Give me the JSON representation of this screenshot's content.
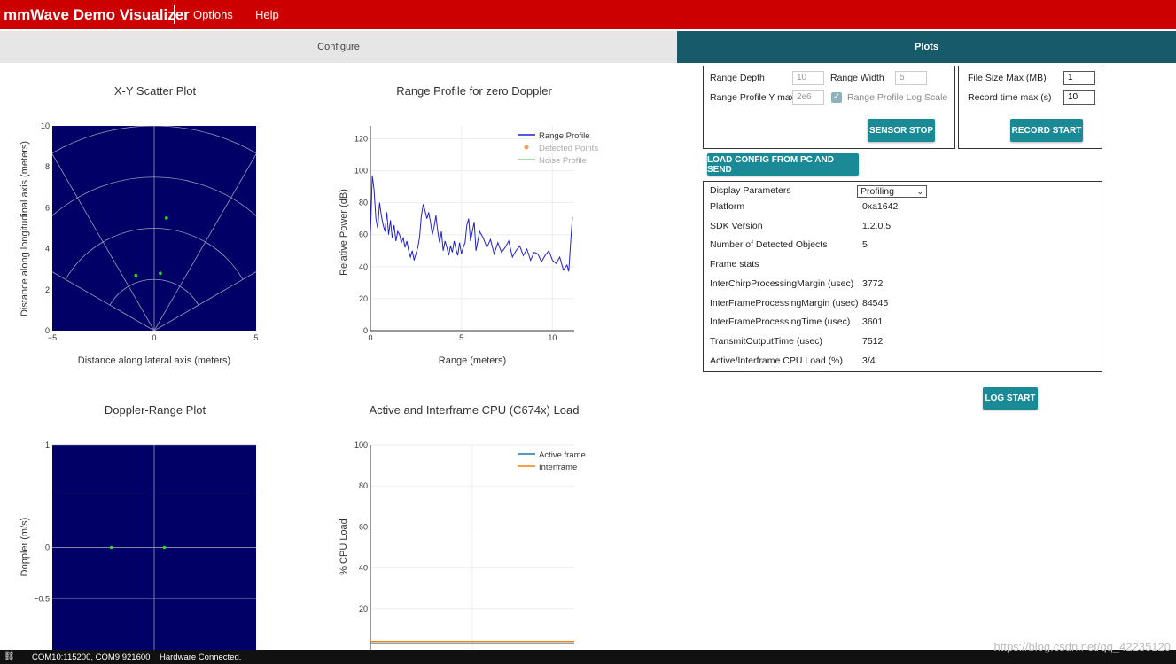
{
  "app": {
    "title": "mmWave Demo Visualizer",
    "menu": [
      "Options",
      "Help"
    ]
  },
  "tabs": {
    "configure": "Configure",
    "plots": "Plots"
  },
  "controls": {
    "range_depth_label": "Range Depth",
    "range_depth_value": "10",
    "range_width_label": "Range Width",
    "range_width_value": "5",
    "range_profile_ymax_label": "Range Profile Y max",
    "range_profile_ymax_value": "2e6",
    "log_scale_label": "Range Profile Log Scale",
    "log_scale_checked": true,
    "sensor_stop": "SENSOR STOP",
    "file_size_label": "File Size Max (MB)",
    "file_size_value": "1",
    "record_time_label": "Record time max (s)",
    "record_time_value": "10",
    "record_start": "RECORD START",
    "load_config": "LOAD CONFIG FROM PC AND SEND",
    "log_start": "LOG START"
  },
  "display": {
    "label": "Display Parameters",
    "selected": "Profiling",
    "rows": [
      {
        "k": "Platform",
        "v": "0xa1642"
      },
      {
        "k": "SDK Version",
        "v": "1.2.0.5"
      },
      {
        "k": "Number of Detected Objects",
        "v": "5"
      },
      {
        "k": "Frame stats",
        "v": ""
      },
      {
        "k": "InterChirpProcessingMargin (usec)",
        "v": "3772"
      },
      {
        "k": "InterFrameProcessingMargin (usec)",
        "v": "84545"
      },
      {
        "k": "InterFrameProcessingTime (usec)",
        "v": "3601"
      },
      {
        "k": "TransmitOutputTime (usec)",
        "v": "7512"
      },
      {
        "k": "Active/Interframe CPU Load (%)",
        "v": "3/4"
      }
    ]
  },
  "status": {
    "text": "COM10:115200, COM9:921600    Hardware Connected."
  },
  "watermark": "https://blog.csdn.net/qq_42235120",
  "colors": {
    "header": "#cc0000",
    "plots_tab": "#175a6a",
    "button": "#1a8a96",
    "plot_bg": "#000066"
  },
  "chart_data": [
    {
      "type": "scatter",
      "title": "X-Y Scatter Plot",
      "xlabel": "Distance along lateral axis (meters)",
      "ylabel": "Distance along longitudinal axis (meters)",
      "xlim": [
        -5,
        5
      ],
      "ylim": [
        0,
        10
      ],
      "xticks": [
        -5,
        0,
        5
      ],
      "yticks": [
        0,
        2,
        4,
        6,
        8,
        10
      ],
      "points": [
        [
          0.6,
          5.5
        ],
        [
          -0.9,
          2.7
        ],
        [
          0.3,
          2.8
        ]
      ]
    },
    {
      "type": "line",
      "title": "Range Profile for zero Doppler",
      "xlabel": "Range (meters)",
      "ylabel": "Relative Power (dB)",
      "xlim": [
        0,
        11.2
      ],
      "ylim": [
        0,
        128
      ],
      "xticks": [
        0,
        5,
        10
      ],
      "yticks": [
        0,
        20,
        40,
        60,
        80,
        100,
        120
      ],
      "legend": [
        "Range Profile",
        "Detected Points",
        "Noise Profile"
      ],
      "x": [
        0,
        0.1,
        0.2,
        0.3,
        0.4,
        0.5,
        0.6,
        0.7,
        0.8,
        0.9,
        1.0,
        1.1,
        1.2,
        1.3,
        1.4,
        1.5,
        1.6,
        1.7,
        1.8,
        1.9,
        2.0,
        2.1,
        2.2,
        2.3,
        2.4,
        2.5,
        2.6,
        2.7,
        2.8,
        2.9,
        3.0,
        3.1,
        3.2,
        3.3,
        3.4,
        3.5,
        3.6,
        3.7,
        3.8,
        3.9,
        4.0,
        4.1,
        4.2,
        4.3,
        4.4,
        4.5,
        4.6,
        4.7,
        4.8,
        4.9,
        5.0,
        5.1,
        5.2,
        5.3,
        5.4,
        5.5,
        5.6,
        5.7,
        5.8,
        5.9,
        6.0,
        6.2,
        6.4,
        6.6,
        6.8,
        7.0,
        7.2,
        7.4,
        7.6,
        7.8,
        8.0,
        8.2,
        8.4,
        8.6,
        8.8,
        9.0,
        9.2,
        9.4,
        9.6,
        9.8,
        10.0,
        10.2,
        10.4,
        10.6,
        10.8,
        10.9,
        11.0,
        11.1
      ],
      "values": [
        60,
        97,
        88,
        70,
        64,
        80,
        72,
        66,
        62,
        74,
        60,
        69,
        58,
        66,
        56,
        62,
        60,
        55,
        58,
        52,
        56,
        50,
        46,
        50,
        44,
        48,
        52,
        58,
        72,
        79,
        75,
        70,
        74,
        68,
        60,
        65,
        72,
        62,
        55,
        62,
        50,
        56,
        52,
        47,
        53,
        49,
        56,
        51,
        47,
        55,
        48,
        52,
        55,
        66,
        70,
        56,
        62,
        68,
        50,
        56,
        62,
        58,
        52,
        57,
        48,
        55,
        49,
        52,
        56,
        46,
        50,
        53,
        47,
        51,
        44,
        49,
        48,
        43,
        47,
        50,
        44,
        42,
        46,
        38,
        41,
        37,
        55,
        71
      ]
    },
    {
      "type": "scatter",
      "title": "Doppler-Range Plot",
      "xlabel": "",
      "ylabel": "Doppler (m/s)",
      "xlim": [
        -5,
        5
      ],
      "ylim": [
        -1,
        1
      ],
      "yticks": [
        1,
        0.5,
        0,
        -0.5
      ],
      "ytick_labels": [
        "1",
        "",
        "0",
        "−0.5"
      ],
      "points": [
        [
          -2.1,
          0
        ],
        [
          0.5,
          0
        ]
      ]
    },
    {
      "type": "line",
      "title": "Active and Interframe  CPU (C674x) Load",
      "xlabel": "",
      "ylabel": "% CPU Load",
      "ylim": [
        0,
        100
      ],
      "yticks": [
        20,
        40,
        60,
        80,
        100
      ],
      "series": [
        {
          "name": "Active frame",
          "color": "#1f77b4",
          "values": [
            3,
            3
          ]
        },
        {
          "name": "Interframe",
          "color": "#ff7f0e",
          "values": [
            4,
            4
          ]
        }
      ]
    }
  ]
}
